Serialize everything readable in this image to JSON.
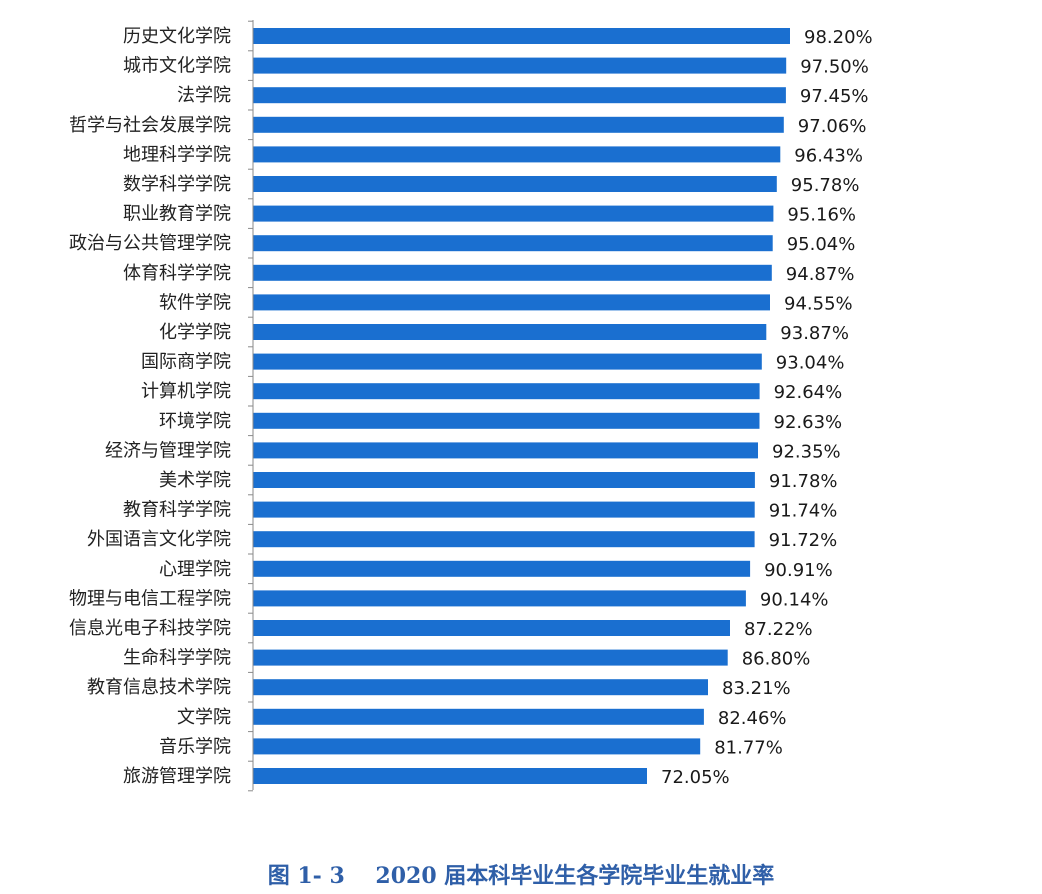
{
  "chart_data": {
    "type": "bar",
    "orientation": "horizontal",
    "categories": [
      "历史文化学院",
      "城市文化学院",
      "法学院",
      "哲学与社会发展学院",
      "地理科学学院",
      "数学科学学院",
      "职业教育学院",
      "政治与公共管理学院",
      "体育科学学院",
      "软件学院",
      "化学学院",
      "国际商学院",
      "计算机学院",
      "环境学院",
      "经济与管理学院",
      "美术学院",
      "教育科学学院",
      "外国语言文化学院",
      "心理学院",
      "物理与电信工程学院",
      "信息光电子科技学院",
      "生命科学学院",
      "教育信息技术学院",
      "文学院",
      "音乐学院",
      "旅游管理学院"
    ],
    "values": [
      98.2,
      97.5,
      97.45,
      97.06,
      96.43,
      95.78,
      95.16,
      95.04,
      94.87,
      94.55,
      93.87,
      93.04,
      92.64,
      92.63,
      92.35,
      91.78,
      91.74,
      91.72,
      90.91,
      90.14,
      87.22,
      86.8,
      83.21,
      82.46,
      81.77,
      72.05
    ],
    "value_labels": [
      "98.20%",
      "97.50%",
      "97.45%",
      "97.06%",
      "96.43%",
      "95.78%",
      "95.16%",
      "95.04%",
      "94.87%",
      "94.55%",
      "93.87%",
      "93.04%",
      "92.64%",
      "92.63%",
      "92.35%",
      "91.78%",
      "91.74%",
      "91.72%",
      "90.91%",
      "90.14%",
      "87.22%",
      "86.80%",
      "83.21%",
      "82.46%",
      "81.77%",
      "72.05%"
    ],
    "title": "图 1- 3    2020 届本科毕业生各学院毕业生就业率",
    "xlabel": "",
    "ylabel": "",
    "xlim": [
      0,
      100
    ],
    "grid": false,
    "legend": "none",
    "bar_color": "#1a6fd0"
  }
}
